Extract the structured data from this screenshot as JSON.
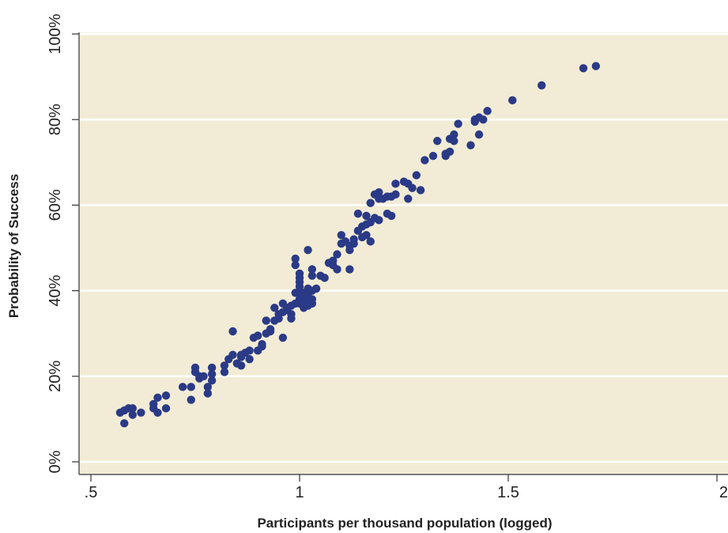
{
  "chart_data": {
    "type": "scatter",
    "title": "",
    "xlabel": "Participants per thousand population (logged)",
    "ylabel": "Probability of Success",
    "xlim": [
      0.5,
      2.0
    ],
    "ylim": [
      0,
      100
    ],
    "x_ticks": [
      {
        "value": 0.5,
        "label": ".5"
      },
      {
        "value": 1.0,
        "label": "1"
      },
      {
        "value": 1.5,
        "label": "1.5"
      },
      {
        "value": 2.0,
        "label": "2"
      }
    ],
    "y_ticks": [
      {
        "value": 0,
        "label": "0%"
      },
      {
        "value": 20,
        "label": "20%"
      },
      {
        "value": 40,
        "label": "40%"
      },
      {
        "value": 60,
        "label": "60%"
      },
      {
        "value": 80,
        "label": "80%"
      },
      {
        "value": 100,
        "label": "100%"
      }
    ],
    "grid": "horizontal",
    "colors": {
      "plot_background": "#f2ecd6",
      "points": "#2b3a86",
      "gridlines": "#ffffff"
    },
    "points": [
      [
        0.58,
        9.0
      ],
      [
        0.57,
        11.5
      ],
      [
        0.58,
        12.0
      ],
      [
        0.59,
        12.5
      ],
      [
        0.6,
        11.0
      ],
      [
        0.6,
        12.5
      ],
      [
        0.62,
        11.5
      ],
      [
        0.65,
        12.5
      ],
      [
        0.65,
        13.5
      ],
      [
        0.66,
        15.0
      ],
      [
        0.66,
        11.5
      ],
      [
        0.68,
        15.5
      ],
      [
        0.68,
        12.5
      ],
      [
        0.72,
        17.5
      ],
      [
        0.74,
        14.5
      ],
      [
        0.74,
        17.5
      ],
      [
        0.75,
        22.0
      ],
      [
        0.75,
        21.0
      ],
      [
        0.76,
        19.5
      ],
      [
        0.76,
        20.0
      ],
      [
        0.77,
        20.0
      ],
      [
        0.78,
        16.0
      ],
      [
        0.78,
        17.5
      ],
      [
        0.79,
        19.0
      ],
      [
        0.79,
        20.5
      ],
      [
        0.79,
        22.0
      ],
      [
        0.82,
        21.0
      ],
      [
        0.82,
        22.5
      ],
      [
        0.83,
        24.0
      ],
      [
        0.84,
        30.5
      ],
      [
        0.84,
        25.0
      ],
      [
        0.85,
        23.0
      ],
      [
        0.86,
        22.5
      ],
      [
        0.86,
        25.0
      ],
      [
        0.86,
        24.5
      ],
      [
        0.87,
        25.5
      ],
      [
        0.88,
        24.0
      ],
      [
        0.88,
        26.0
      ],
      [
        0.89,
        29.0
      ],
      [
        0.9,
        29.5
      ],
      [
        0.9,
        26.0
      ],
      [
        0.91,
        27.5
      ],
      [
        0.91,
        27.0
      ],
      [
        0.92,
        30.0
      ],
      [
        0.92,
        33.0
      ],
      [
        0.93,
        31.0
      ],
      [
        0.93,
        30.5
      ],
      [
        0.94,
        33.0
      ],
      [
        0.94,
        36.0
      ],
      [
        0.95,
        34.5
      ],
      [
        0.95,
        33.5
      ],
      [
        0.96,
        37.0
      ],
      [
        0.96,
        29.0
      ],
      [
        0.96,
        35.0
      ],
      [
        0.97,
        36.0
      ],
      [
        0.97,
        35.5
      ],
      [
        0.98,
        34.5
      ],
      [
        0.98,
        33.5
      ],
      [
        0.98,
        36.5
      ],
      [
        0.99,
        39.5
      ],
      [
        0.99,
        37.0
      ],
      [
        0.99,
        46.0
      ],
      [
        0.99,
        47.5
      ],
      [
        1.0,
        37.0
      ],
      [
        1.0,
        38.0
      ],
      [
        1.0,
        39.0
      ],
      [
        1.0,
        40.0
      ],
      [
        1.0,
        41.0
      ],
      [
        1.0,
        43.0
      ],
      [
        1.0,
        42.0
      ],
      [
        1.0,
        44.0
      ],
      [
        1.01,
        36.0
      ],
      [
        1.01,
        37.5
      ],
      [
        1.01,
        38.5
      ],
      [
        1.01,
        39.5
      ],
      [
        1.02,
        36.5
      ],
      [
        1.02,
        37.5
      ],
      [
        1.02,
        39.0
      ],
      [
        1.02,
        40.5
      ],
      [
        1.02,
        49.5
      ],
      [
        1.03,
        37.0
      ],
      [
        1.03,
        38.0
      ],
      [
        1.03,
        40.0
      ],
      [
        1.03,
        43.5
      ],
      [
        1.03,
        45.0
      ],
      [
        1.04,
        40.5
      ],
      [
        1.05,
        43.5
      ],
      [
        1.06,
        43.0
      ],
      [
        1.07,
        46.5
      ],
      [
        1.08,
        47.0
      ],
      [
        1.08,
        46.0
      ],
      [
        1.09,
        45.0
      ],
      [
        1.09,
        48.5
      ],
      [
        1.1,
        51.0
      ],
      [
        1.1,
        53.0
      ],
      [
        1.11,
        51.5
      ],
      [
        1.12,
        49.5
      ],
      [
        1.12,
        45.0
      ],
      [
        1.12,
        50.5
      ],
      [
        1.13,
        52.0
      ],
      [
        1.13,
        51.0
      ],
      [
        1.14,
        54.0
      ],
      [
        1.14,
        58.0
      ],
      [
        1.15,
        52.5
      ],
      [
        1.15,
        55.0
      ],
      [
        1.16,
        53.0
      ],
      [
        1.16,
        55.5
      ],
      [
        1.16,
        57.5
      ],
      [
        1.17,
        51.5
      ],
      [
        1.17,
        56.0
      ],
      [
        1.17,
        60.5
      ],
      [
        1.18,
        62.5
      ],
      [
        1.18,
        57.0
      ],
      [
        1.19,
        63.0
      ],
      [
        1.19,
        61.5
      ],
      [
        1.19,
        56.5
      ],
      [
        1.2,
        61.5
      ],
      [
        1.21,
        58.0
      ],
      [
        1.21,
        62.0
      ],
      [
        1.22,
        57.5
      ],
      [
        1.22,
        62.0
      ],
      [
        1.23,
        65.0
      ],
      [
        1.23,
        62.5
      ],
      [
        1.25,
        65.5
      ],
      [
        1.26,
        65.0
      ],
      [
        1.26,
        61.5
      ],
      [
        1.27,
        64.0
      ],
      [
        1.28,
        67.0
      ],
      [
        1.29,
        63.5
      ],
      [
        1.3,
        70.5
      ],
      [
        1.32,
        71.5
      ],
      [
        1.33,
        75.0
      ],
      [
        1.35,
        71.5
      ],
      [
        1.35,
        72.0
      ],
      [
        1.36,
        72.5
      ],
      [
        1.36,
        75.5
      ],
      [
        1.37,
        75.0
      ],
      [
        1.37,
        76.5
      ],
      [
        1.38,
        79.0
      ],
      [
        1.41,
        74.0
      ],
      [
        1.42,
        79.5
      ],
      [
        1.42,
        80.0
      ],
      [
        1.43,
        76.5
      ],
      [
        1.43,
        80.5
      ],
      [
        1.44,
        80.0
      ],
      [
        1.45,
        82.0
      ],
      [
        1.51,
        84.5
      ],
      [
        1.58,
        88.0
      ],
      [
        1.68,
        92.0
      ],
      [
        1.71,
        92.5
      ]
    ]
  }
}
